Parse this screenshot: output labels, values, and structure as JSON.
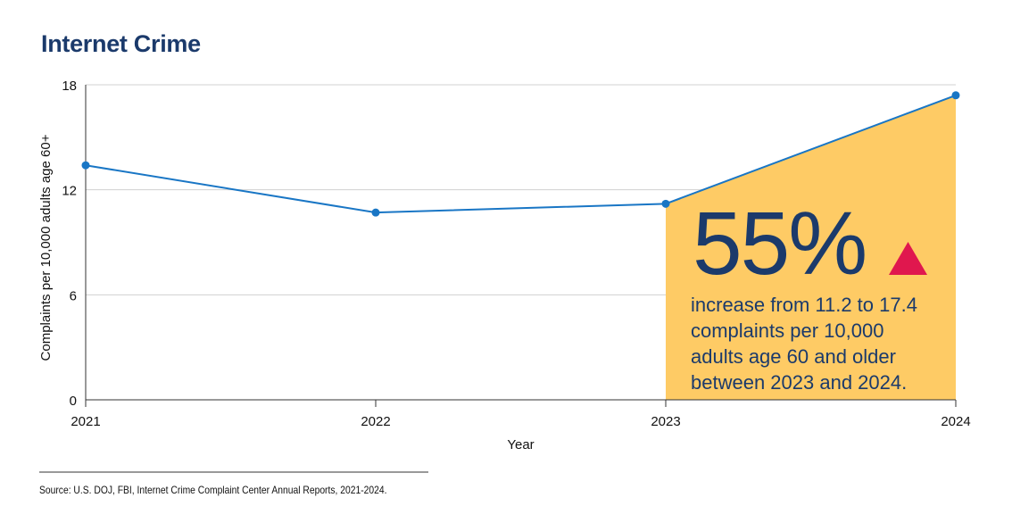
{
  "chart_data": {
    "type": "line",
    "title": "Internet Crime",
    "xlabel": "Year",
    "ylabel": "Complaints per 10,000 adults age 60+",
    "categories": [
      "2021",
      "2022",
      "2023",
      "2024"
    ],
    "series": [
      {
        "values": [
          13.4,
          10.7,
          11.2,
          17.4
        ]
      }
    ],
    "yticks": [
      "0",
      "6",
      "12",
      "18"
    ],
    "ylim": [
      0,
      18
    ],
    "grid": true,
    "highlight": {
      "from": "2023",
      "to": "2024",
      "fill_color": "#fecb65",
      "big_number": "55%",
      "description": [
        "increase from 11.2 to 17.4",
        "complaints per 10,000",
        "adults age 60 and older",
        "between 2023 and 2024."
      ],
      "marker_color": "#e0174e"
    },
    "colors": {
      "line": "#1976c5",
      "title": "#1b3a6b",
      "callout_text": "#1b3a6b"
    },
    "source": "Source: U.S. DOJ, FBI, Internet Crime Complaint Center Annual Reports, 2021-2024."
  }
}
